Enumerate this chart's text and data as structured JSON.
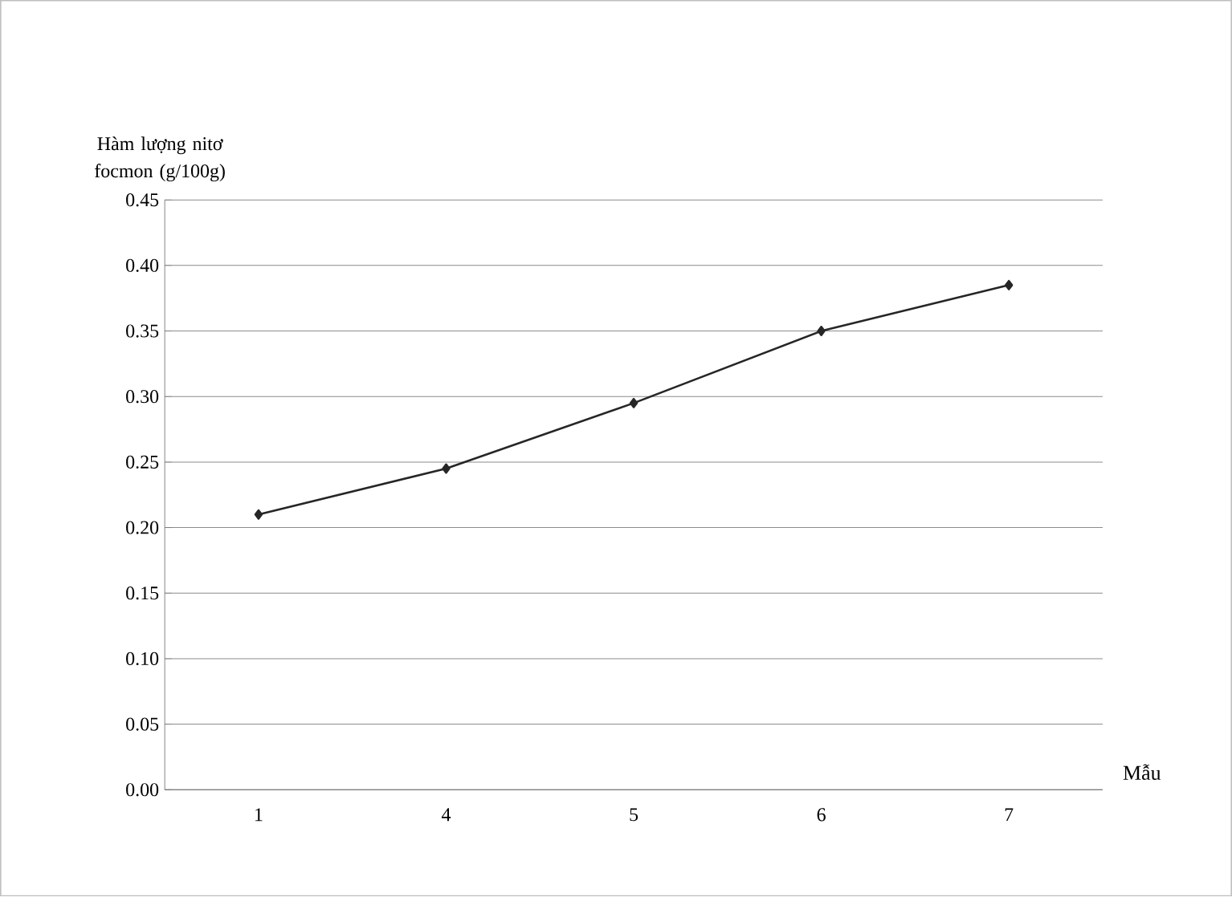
{
  "chart_data": {
    "type": "line",
    "ylabel": "Hàm lượng nitơ focmon (g/100g)",
    "xlabel": "Mẫu",
    "categories": [
      "1",
      "4",
      "5",
      "6",
      "7"
    ],
    "series": [
      {
        "color": "#262626",
        "values": [
          0.21,
          0.245,
          0.295,
          0.35,
          0.385
        ]
      }
    ],
    "ylim": [
      0,
      0.45
    ],
    "yticks": [
      {
        "value": 0,
        "label": "0.00"
      },
      {
        "value": 0.05,
        "label": "0.05"
      },
      {
        "value": 0.1,
        "label": "0.10"
      },
      {
        "value": 0.15,
        "label": "0.15"
      },
      {
        "value": 0.2,
        "label": "0.20"
      },
      {
        "value": 0.25,
        "label": "0.25"
      },
      {
        "value": 0.3,
        "label": "0.30"
      },
      {
        "value": 0.35,
        "label": "0.35"
      },
      {
        "value": 0.4,
        "label": "0.40"
      },
      {
        "value": 0.45,
        "label": "0.45"
      }
    ],
    "grid": "y",
    "marker": "diamond",
    "line_style": "solid"
  }
}
